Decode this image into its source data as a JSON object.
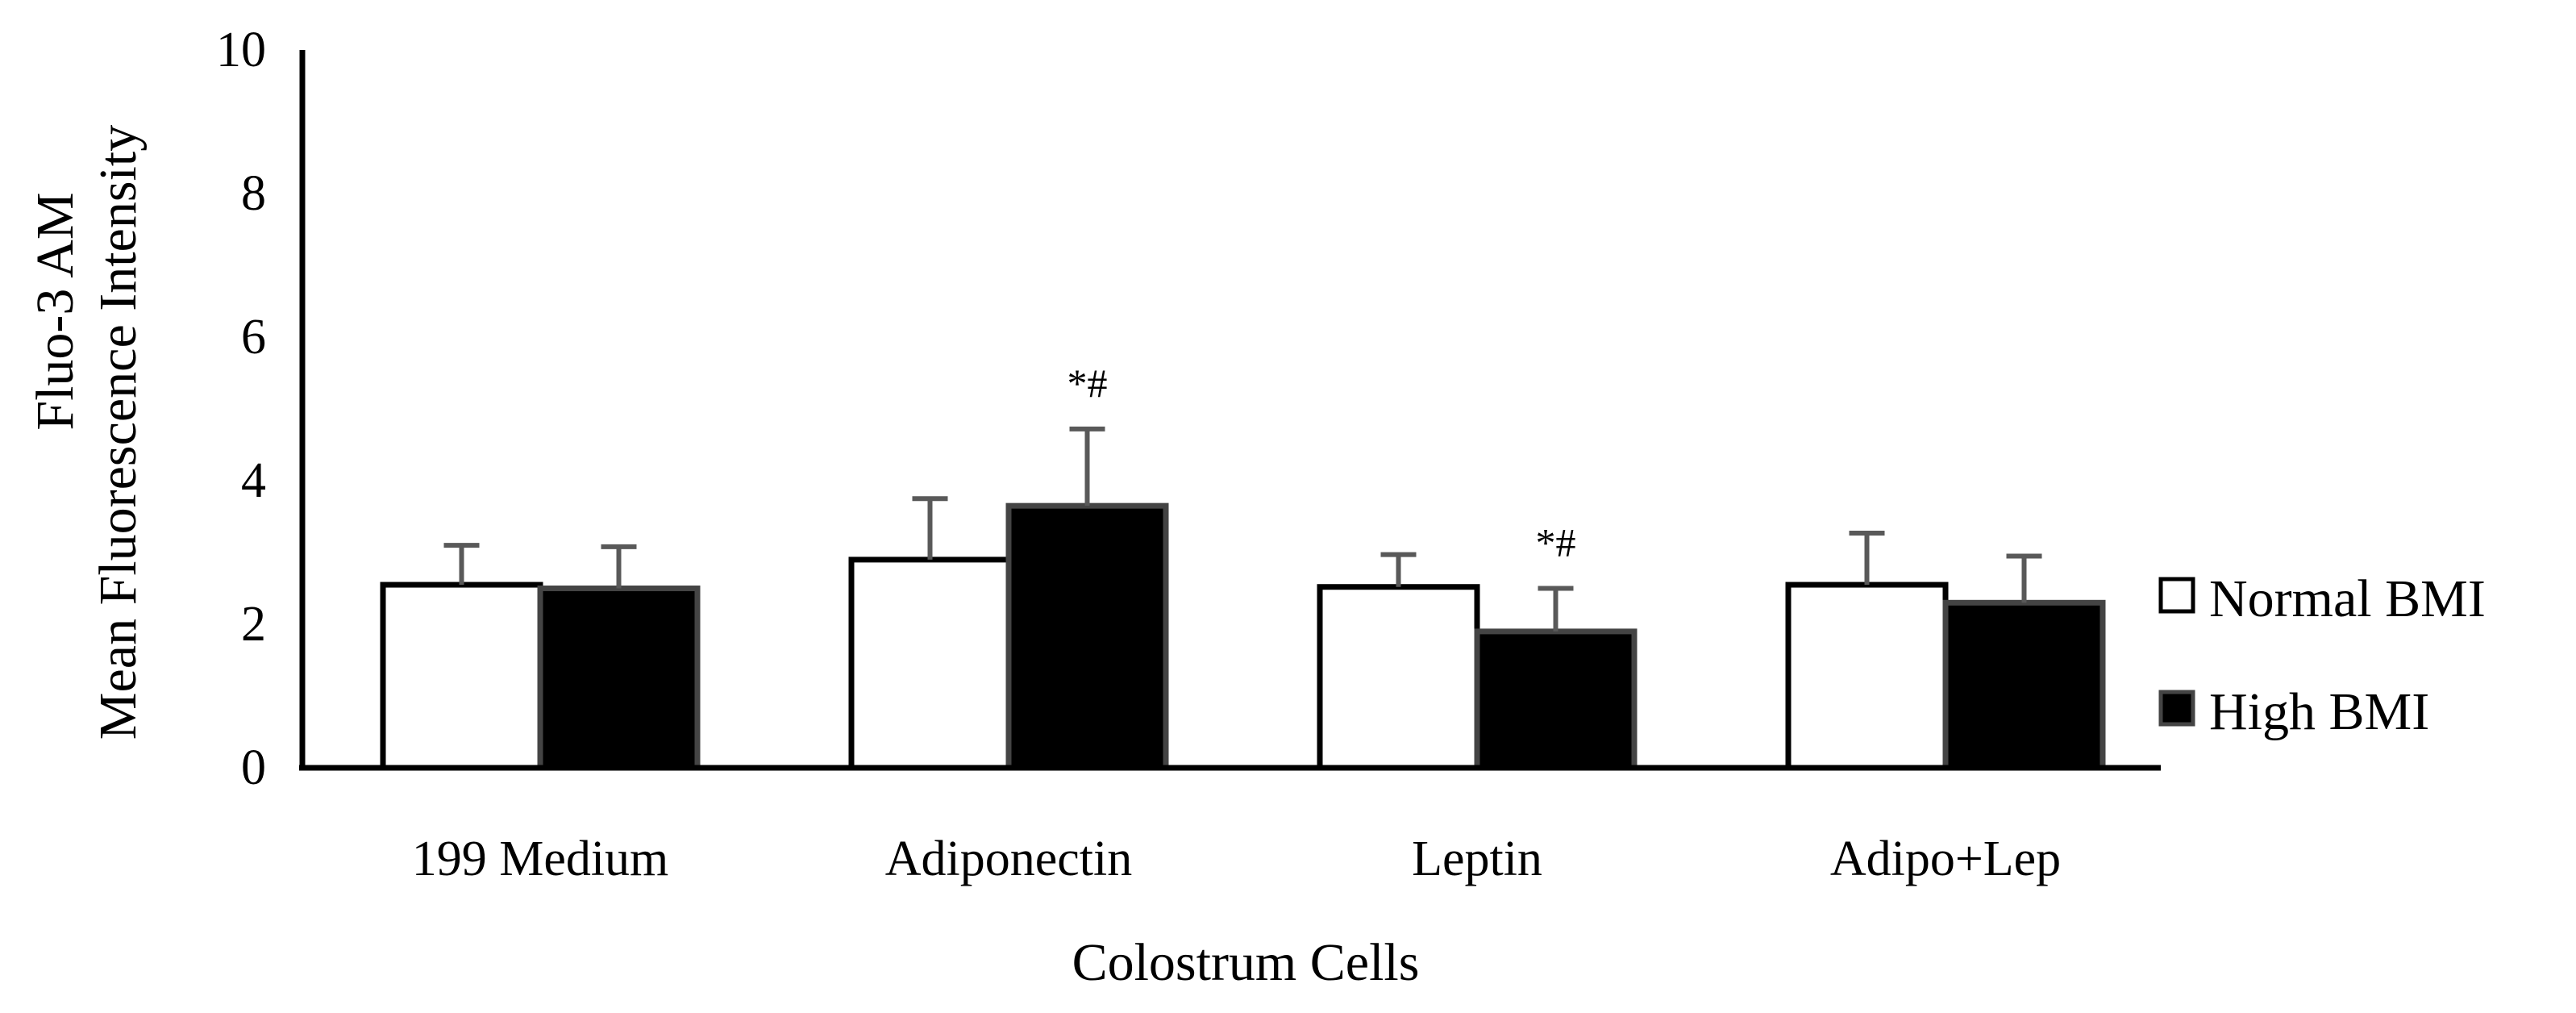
{
  "chart_data": {
    "type": "bar",
    "categories": [
      "199 Medium",
      "Adiponectin",
      "Leptin",
      "Adipo+Lep"
    ],
    "series": [
      {
        "name": "Normal BMI",
        "values": [
          2.55,
          2.9,
          2.52,
          2.55
        ],
        "errors": [
          0.55,
          0.85,
          0.45,
          0.72
        ],
        "color": "#ffffff"
      },
      {
        "name": "High BMI",
        "values": [
          2.5,
          3.65,
          1.9,
          2.3
        ],
        "errors": [
          0.58,
          1.07,
          0.6,
          0.65
        ],
        "color": "#000000"
      }
    ],
    "annotations": [
      {
        "category": 1,
        "series": 1,
        "text": "*#"
      },
      {
        "category": 2,
        "series": 1,
        "text": "*#"
      }
    ],
    "ylabel_line1": "Fluo-3 AM",
    "ylabel_line2": "Mean Fluorescence Intensity",
    "xlabel": "Colostrum Cells",
    "ylim": [
      0,
      10
    ],
    "yticks": [
      "0",
      "2",
      "4",
      "6",
      "8",
      "10"
    ],
    "legend_position": "right",
    "grid": false
  }
}
